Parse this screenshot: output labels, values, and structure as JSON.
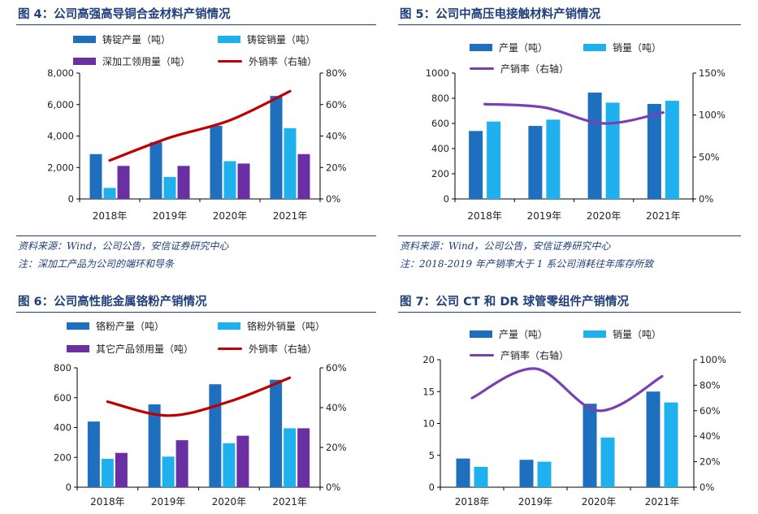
{
  "colors": {
    "prod": "#1f6fbf",
    "sales": "#1fb0ee",
    "use": "#6a2fa3",
    "rate4": "#c00000",
    "rate": "#7b3fb5",
    "title": "#1f3f7a"
  },
  "fig4": {
    "title": "图 4：公司高强高导铜合金材料产销情况",
    "source": "资料来源：Wind，公司公告，安信证券研究中心",
    "note": "注：深加工产品为公司的端环和导条",
    "legend": [
      "铸锭产量（吨）",
      "铸锭销量（吨）",
      "深加工领用量（吨）",
      "外销率（右轴）"
    ]
  },
  "fig5": {
    "title": "图 5：公司中高压电接触材料产销情况",
    "source": "资料来源：Wind，公司公告，安信证券研究中心",
    "note": "注：2018-2019 年产销率大于 1 系公司消耗往年库存所致",
    "legend": [
      "产量（吨）",
      "销量（吨）",
      "产销率（右轴）"
    ]
  },
  "fig6": {
    "title": "图 6：公司高性能金属铬粉产销情况",
    "legend": [
      "铬粉产量（吨）",
      "铬粉外销量（吨）",
      "其它产品领用量（吨）",
      "外销率（右轴）"
    ]
  },
  "fig7": {
    "title": "图 7：公司 CT 和 DR 球管零组件产销情况",
    "legend": [
      "产量（吨）",
      "销量（吨）",
      "产销率（右轴）"
    ]
  },
  "chart_data": [
    {
      "id": "fig4",
      "type": "bar",
      "categories": [
        "2018年",
        "2019年",
        "2020年",
        "2021年"
      ],
      "series": [
        {
          "name": "铸锭产量（吨）",
          "kind": "bar",
          "values": [
            2850,
            3600,
            4650,
            6550
          ]
        },
        {
          "name": "铸锭销量（吨）",
          "kind": "bar",
          "values": [
            700,
            1400,
            2400,
            4500
          ]
        },
        {
          "name": "深加工领用量（吨）",
          "kind": "bar",
          "values": [
            2100,
            2100,
            2250,
            2850
          ]
        },
        {
          "name": "外销率（右轴）",
          "kind": "line",
          "axis": "right",
          "values": [
            0.245,
            0.39,
            0.5,
            0.685
          ]
        }
      ],
      "ylim": [
        0,
        8000
      ],
      "yticks": [
        "0",
        "2,000",
        "4,000",
        "6,000",
        "8,000"
      ],
      "y2lim": [
        0,
        0.8
      ],
      "y2ticks": [
        "0%",
        "20%",
        "40%",
        "60%",
        "80%"
      ]
    },
    {
      "id": "fig5",
      "type": "bar",
      "categories": [
        "2018年",
        "2019年",
        "2020年",
        "2021年"
      ],
      "series": [
        {
          "name": "产量（吨）",
          "kind": "bar",
          "values": [
            540,
            580,
            845,
            755
          ]
        },
        {
          "name": "销量（吨）",
          "kind": "bar",
          "values": [
            615,
            630,
            765,
            780
          ]
        },
        {
          "name": "产销率（右轴）",
          "kind": "line",
          "axis": "right",
          "values": [
            1.13,
            1.09,
            0.9,
            1.03
          ]
        }
      ],
      "ylim": [
        0,
        1000
      ],
      "yticks": [
        "0",
        "200",
        "400",
        "600",
        "800",
        "1000"
      ],
      "y2lim": [
        0,
        1.5
      ],
      "y2ticks": [
        "0%",
        "50%",
        "100%",
        "150%"
      ]
    },
    {
      "id": "fig6",
      "type": "bar",
      "categories": [
        "2018年",
        "2019年",
        "2020年",
        "2021年"
      ],
      "series": [
        {
          "name": "铬粉产量（吨）",
          "kind": "bar",
          "values": [
            440,
            555,
            690,
            720
          ]
        },
        {
          "name": "铬粉外销量（吨）",
          "kind": "bar",
          "values": [
            190,
            205,
            295,
            395
          ]
        },
        {
          "name": "其它产品领用量（吨）",
          "kind": "bar",
          "values": [
            230,
            315,
            345,
            395
          ]
        },
        {
          "name": "外销率（右轴）",
          "kind": "line",
          "axis": "right",
          "values": [
            0.43,
            0.36,
            0.43,
            0.55
          ]
        }
      ],
      "ylim": [
        0,
        800
      ],
      "yticks": [
        "0",
        "200",
        "400",
        "600",
        "800"
      ],
      "y2lim": [
        0,
        0.6
      ],
      "y2ticks": [
        "0%",
        "20%",
        "40%",
        "60%"
      ]
    },
    {
      "id": "fig7",
      "type": "bar",
      "categories": [
        "2018年",
        "2019年",
        "2020年",
        "2021年"
      ],
      "series": [
        {
          "name": "产量（吨）",
          "kind": "bar",
          "values": [
            4.5,
            4.3,
            13.1,
            15.0
          ]
        },
        {
          "name": "销量（吨）",
          "kind": "bar",
          "values": [
            3.2,
            4.0,
            7.8,
            13.3
          ]
        },
        {
          "name": "产销率（右轴）",
          "kind": "line",
          "axis": "right",
          "values": [
            0.7,
            0.93,
            0.6,
            0.87
          ]
        }
      ],
      "ylim": [
        0,
        20
      ],
      "yticks": [
        "0",
        "5",
        "10",
        "15",
        "20"
      ],
      "y2lim": [
        0,
        1.0
      ],
      "y2ticks": [
        "0%",
        "20%",
        "40%",
        "60%",
        "80%",
        "100%"
      ]
    }
  ]
}
